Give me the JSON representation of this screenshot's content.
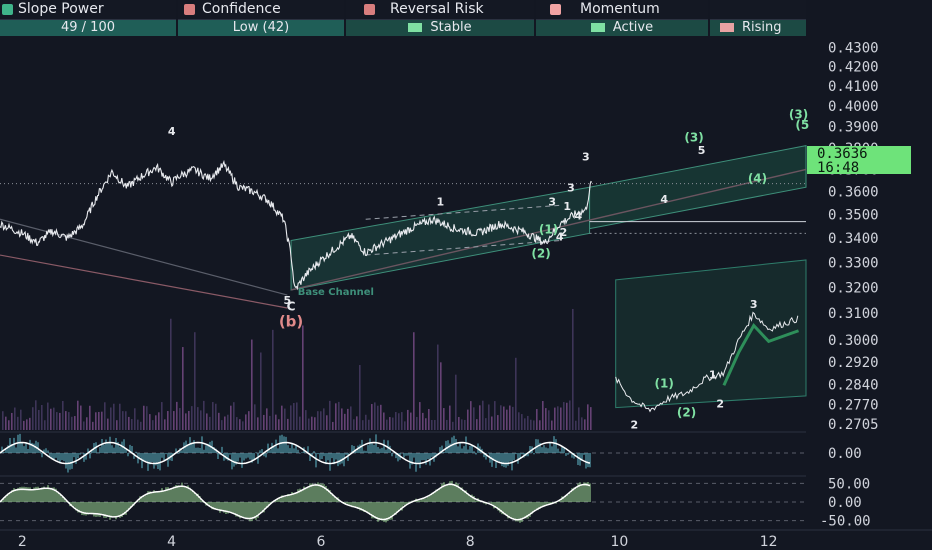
{
  "header": {
    "slope": {
      "label": "Slope Power",
      "value": "49 / 100",
      "icon": "gauge-icon"
    },
    "confidence": {
      "label": "Confidence",
      "value": "Low (42)",
      "icon": "brain-icon"
    },
    "reversal": {
      "label": "Reversal Risk",
      "value": "Stable",
      "icon": "warning-icon"
    },
    "momentum": {
      "label": "Momentum",
      "value": "Active",
      "icon": "bars-icon"
    },
    "trend": {
      "value": "Rising",
      "icon": "trend-up-icon"
    }
  },
  "price_tag": {
    "price": "0.3636",
    "countdown": "16:48"
  },
  "colors": {
    "background": "#131722",
    "accent_green": "#6ee37a",
    "channel": "#2e7d6b",
    "label_pink": "#e08a8a"
  },
  "chart_data": [
    {
      "type": "line",
      "x_ticks": [
        "2",
        "4",
        "6",
        "8",
        "10",
        "12"
      ],
      "x_tick_values": [
        2,
        4,
        6,
        8,
        10,
        12
      ],
      "xlim": [
        1.7,
        12.5
      ],
      "ylim": [
        0.2685,
        0.4355
      ],
      "y_scale": "log",
      "y_ticks": [
        "0.4300",
        "0.4200",
        "0.4100",
        "0.4000",
        "0.3900",
        "0.3800",
        "0.3700",
        "0.3600",
        "0.3500",
        "0.3400",
        "0.3300",
        "0.3200",
        "0.3100",
        "0.3000",
        "0.2920",
        "0.2840",
        "0.2770",
        "0.2705"
      ],
      "y_tick_values": [
        0.43,
        0.42,
        0.41,
        0.4,
        0.39,
        0.38,
        0.37,
        0.36,
        0.35,
        0.34,
        0.33,
        0.32,
        0.31,
        0.3,
        0.292,
        0.284,
        0.277,
        0.2705
      ],
      "price_series": [
        [
          1.7,
          0.346
        ],
        [
          2.0,
          0.342
        ],
        [
          2.2,
          0.338
        ],
        [
          2.4,
          0.343
        ],
        [
          2.6,
          0.34
        ],
        [
          2.8,
          0.345
        ],
        [
          3.0,
          0.358
        ],
        [
          3.2,
          0.369
        ],
        [
          3.4,
          0.362
        ],
        [
          3.6,
          0.367
        ],
        [
          3.8,
          0.371
        ],
        [
          4.0,
          0.364
        ],
        [
          4.1,
          0.367
        ],
        [
          4.3,
          0.37
        ],
        [
          4.5,
          0.366
        ],
        [
          4.7,
          0.372
        ],
        [
          4.9,
          0.362
        ],
        [
          5.1,
          0.36
        ],
        [
          5.3,
          0.356
        ],
        [
          5.5,
          0.348
        ],
        [
          5.6,
          0.333
        ],
        [
          5.65,
          0.319
        ],
        [
          5.8,
          0.325
        ],
        [
          6.0,
          0.331
        ],
        [
          6.2,
          0.336
        ],
        [
          6.4,
          0.341
        ],
        [
          6.6,
          0.334
        ],
        [
          6.9,
          0.339
        ],
        [
          7.2,
          0.344
        ],
        [
          7.5,
          0.348
        ],
        [
          7.8,
          0.344
        ],
        [
          8.1,
          0.342
        ],
        [
          8.4,
          0.346
        ],
        [
          8.7,
          0.343
        ],
        [
          9.0,
          0.338
        ],
        [
          9.2,
          0.346
        ],
        [
          9.4,
          0.35
        ],
        [
          9.55,
          0.352
        ],
        [
          9.62,
          0.364
        ]
      ],
      "inset_series": [
        [
          9.95,
          0.286
        ],
        [
          10.15,
          0.279
        ],
        [
          10.4,
          0.275
        ],
        [
          10.65,
          0.279
        ],
        [
          10.9,
          0.281
        ],
        [
          11.15,
          0.286
        ],
        [
          11.4,
          0.288
        ],
        [
          11.6,
          0.3
        ],
        [
          11.8,
          0.31
        ],
        [
          12.0,
          0.304
        ],
        [
          12.3,
          0.307
        ],
        [
          12.4,
          0.308
        ]
      ],
      "wave_labels": [
        {
          "text": "4",
          "x": 4.0,
          "y": 0.386
        },
        {
          "text": "5",
          "x": 5.55,
          "y": 0.3135
        },
        {
          "text": "C",
          "x": 5.6,
          "y": 0.311
        },
        {
          "text": "(b)",
          "x": 5.6,
          "y": 0.305
        },
        {
          "text": "Base Channel",
          "x": 6.2,
          "y": 0.317
        },
        {
          "text": "1",
          "x": 7.6,
          "y": 0.354
        },
        {
          "text": "3",
          "x": 9.55,
          "y": 0.374
        },
        {
          "text": "3",
          "x": 9.35,
          "y": 0.36
        },
        {
          "text": "3",
          "x": 9.1,
          "y": 0.354
        },
        {
          "text": "1",
          "x": 9.3,
          "y": 0.352
        },
        {
          "text": "4",
          "x": 9.45,
          "y": 0.348
        },
        {
          "text": "(1)",
          "x": 9.05,
          "y": 0.342
        },
        {
          "text": "2",
          "x": 9.25,
          "y": 0.341
        },
        {
          "text": "4",
          "x": 9.2,
          "y": 0.339
        },
        {
          "text": "(2)",
          "x": 8.95,
          "y": 0.332
        },
        {
          "text": "4",
          "x": 10.6,
          "y": 0.355
        },
        {
          "text": "(3)",
          "x": 11.0,
          "y": 0.383
        },
        {
          "text": "5",
          "x": 11.1,
          "y": 0.377
        },
        {
          "text": "(4)",
          "x": 11.85,
          "y": 0.364
        },
        {
          "text": "(3)",
          "x": 12.4,
          "y": 0.394
        },
        {
          "text": "(5",
          "x": 12.45,
          "y": 0.389
        },
        {
          "text": "(1)",
          "x": 10.6,
          "y": 0.283
        },
        {
          "text": "1",
          "x": 11.25,
          "y": 0.286
        },
        {
          "text": "2",
          "x": 11.35,
          "y": 0.276
        },
        {
          "text": "(2)",
          "x": 10.9,
          "y": 0.273
        },
        {
          "text": "3",
          "x": 11.8,
          "y": 0.312
        },
        {
          "text": "2",
          "x": 10.2,
          "y": 0.269
        }
      ]
    },
    {
      "type": "line",
      "name": "oscillator-1",
      "y_ticks": [
        "0.00"
      ],
      "y_tick_values": [
        0
      ],
      "ylim": [
        -1.6,
        1.6
      ]
    },
    {
      "type": "line",
      "name": "oscillator-2",
      "y_ticks": [
        "50.00",
        "0.00",
        "-50.00"
      ],
      "y_tick_values": [
        50,
        0,
        -50
      ],
      "ylim": [
        -70,
        70
      ]
    }
  ]
}
